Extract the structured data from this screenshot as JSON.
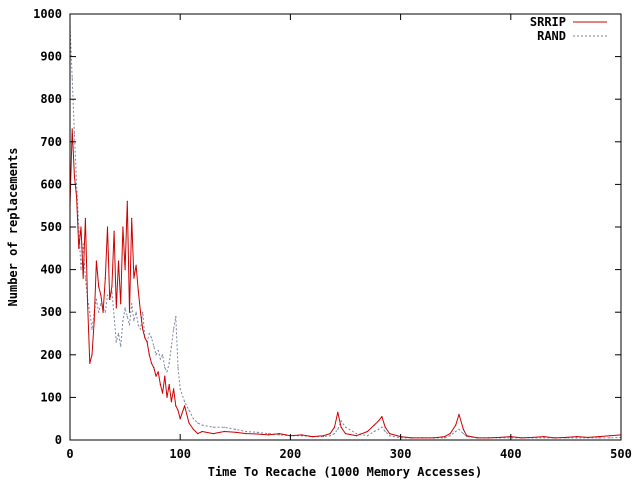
{
  "chart_data": {
    "type": "line",
    "title": "",
    "xlabel": "Time To Recache (1000 Memory Accesses)",
    "ylabel": "Number of replacements",
    "xlim": [
      0,
      500
    ],
    "ylim": [
      0,
      1000
    ],
    "xticks": [
      "0",
      "100",
      "200",
      "300",
      "400",
      "500"
    ],
    "yticks": [
      "0",
      "100",
      "200",
      "300",
      "400",
      "500",
      "600",
      "700",
      "800",
      "900",
      "1000"
    ],
    "grid": false,
    "legend": "top-right",
    "series": [
      {
        "name": "SRRIP",
        "color": "#cc0000",
        "dash": "solid",
        "x": [
          0,
          2,
          4,
          6,
          8,
          10,
          12,
          14,
          16,
          18,
          20,
          22,
          24,
          26,
          28,
          30,
          32,
          34,
          36,
          38,
          40,
          42,
          44,
          46,
          48,
          50,
          52,
          54,
          56,
          58,
          60,
          62,
          64,
          66,
          68,
          70,
          72,
          74,
          76,
          78,
          80,
          82,
          84,
          86,
          88,
          90,
          92,
          94,
          96,
          98,
          100,
          104,
          108,
          112,
          116,
          120,
          130,
          140,
          150,
          160,
          170,
          180,
          190,
          200,
          210,
          220,
          230,
          236,
          240,
          243,
          246,
          250,
          260,
          270,
          276,
          280,
          283,
          286,
          290,
          300,
          310,
          320,
          330,
          340,
          345,
          350,
          353,
          357,
          360,
          370,
          380,
          390,
          400,
          410,
          420,
          430,
          440,
          450,
          460,
          470,
          480,
          490,
          500
        ],
        "values": [
          550,
          730,
          620,
          570,
          450,
          500,
          380,
          520,
          320,
          180,
          200,
          280,
          420,
          360,
          340,
          300,
          380,
          500,
          330,
          360,
          490,
          310,
          420,
          320,
          500,
          400,
          560,
          300,
          520,
          380,
          410,
          350,
          300,
          260,
          240,
          230,
          200,
          180,
          170,
          150,
          160,
          130,
          110,
          150,
          100,
          130,
          90,
          120,
          80,
          70,
          50,
          80,
          40,
          25,
          15,
          20,
          15,
          20,
          18,
          15,
          14,
          12,
          15,
          10,
          12,
          8,
          10,
          15,
          30,
          65,
          30,
          15,
          10,
          20,
          35,
          45,
          55,
          30,
          15,
          8,
          5,
          5,
          5,
          8,
          15,
          35,
          60,
          25,
          10,
          5,
          5,
          6,
          8,
          5,
          6,
          8,
          5,
          6,
          8,
          6,
          8,
          10,
          12
        ]
      },
      {
        "name": "RAND",
        "color": "#7b86a4",
        "dash": "dotted",
        "x": [
          0,
          2,
          4,
          6,
          8,
          10,
          12,
          14,
          16,
          18,
          20,
          22,
          24,
          26,
          28,
          30,
          32,
          34,
          36,
          38,
          40,
          42,
          44,
          46,
          48,
          50,
          52,
          54,
          56,
          58,
          60,
          62,
          64,
          66,
          68,
          70,
          72,
          74,
          76,
          78,
          80,
          82,
          84,
          86,
          88,
          90,
          92,
          94,
          96,
          98,
          100,
          104,
          108,
          112,
          116,
          120,
          130,
          140,
          150,
          160,
          170,
          180,
          190,
          200,
          210,
          220,
          230,
          236,
          240,
          243,
          246,
          250,
          260,
          270,
          276,
          280,
          283,
          286,
          290,
          300,
          310,
          320,
          330,
          340,
          345,
          350,
          353,
          357,
          360,
          370,
          380,
          390,
          400,
          410,
          420,
          430,
          440,
          450,
          460,
          470,
          480,
          490,
          500
        ],
        "values": [
          970,
          850,
          720,
          600,
          500,
          400,
          460,
          380,
          330,
          300,
          260,
          300,
          330,
          300,
          320,
          310,
          300,
          340,
          330,
          350,
          290,
          230,
          250,
          220,
          280,
          310,
          290,
          270,
          320,
          280,
          300,
          270,
          260,
          300,
          240,
          230,
          250,
          240,
          220,
          200,
          210,
          190,
          200,
          170,
          160,
          180,
          220,
          260,
          290,
          170,
          120,
          90,
          70,
          50,
          40,
          35,
          30,
          30,
          25,
          20,
          18,
          15,
          12,
          10,
          10,
          8,
          8,
          10,
          15,
          25,
          45,
          30,
          15,
          10,
          20,
          25,
          30,
          20,
          10,
          5,
          5,
          5,
          5,
          5,
          10,
          20,
          25,
          15,
          8,
          5,
          5,
          5,
          5,
          5,
          5,
          5,
          5,
          5,
          5,
          5,
          5,
          5,
          6
        ]
      }
    ]
  }
}
